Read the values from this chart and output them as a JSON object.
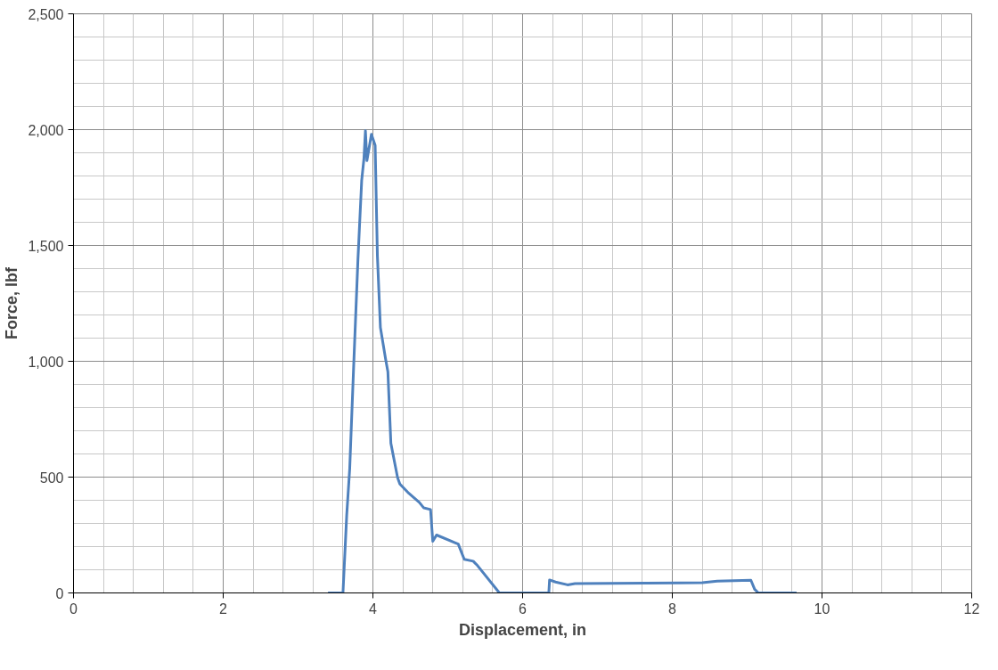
{
  "chart_data": {
    "type": "line",
    "xlabel": "Displacement, in",
    "ylabel": "Force, lbf",
    "xlim": [
      0,
      12
    ],
    "ylim": [
      0,
      2500
    ],
    "xticks": [
      0,
      2,
      4,
      6,
      8,
      10,
      12
    ],
    "yticks": [
      0,
      {
        "value": 500,
        "label": "500"
      },
      {
        "value": 1000,
        "label": "1,000"
      },
      {
        "value": 1500,
        "label": "1,500"
      },
      {
        "value": 2000,
        "label": "2,000"
      },
      {
        "value": 2500,
        "label": "2,500"
      }
    ],
    "grid": true,
    "marker": "none",
    "line_style": "solid",
    "series": [
      {
        "color": "#4f81bd",
        "x": [
          3.4,
          3.6,
          3.65,
          3.69,
          3.74,
          3.8,
          3.85,
          3.88,
          3.9,
          3.92,
          3.98,
          4.03,
          4.06,
          4.1,
          4.17,
          4.2,
          4.24,
          4.33,
          4.36,
          4.48,
          4.62,
          4.68,
          4.77,
          4.8,
          4.85,
          5.14,
          5.22,
          5.34,
          5.4,
          5.69,
          6.35,
          6.36,
          6.44,
          6.6,
          6.7,
          8.4,
          8.6,
          9.05,
          9.1,
          9.15,
          9.66
        ],
        "values": [
          0,
          0,
          336,
          536,
          955,
          1440,
          1780,
          1874,
          1995,
          1866,
          1980,
          1932,
          1455,
          1146,
          1009,
          955,
          646,
          497,
          470,
          430,
          391,
          367,
          360,
          223,
          250,
          211,
          145,
          137,
          117,
          0,
          0,
          56,
          47,
          35,
          40,
          44,
          51,
          55,
          16,
          0,
          0
        ]
      }
    ]
  }
}
